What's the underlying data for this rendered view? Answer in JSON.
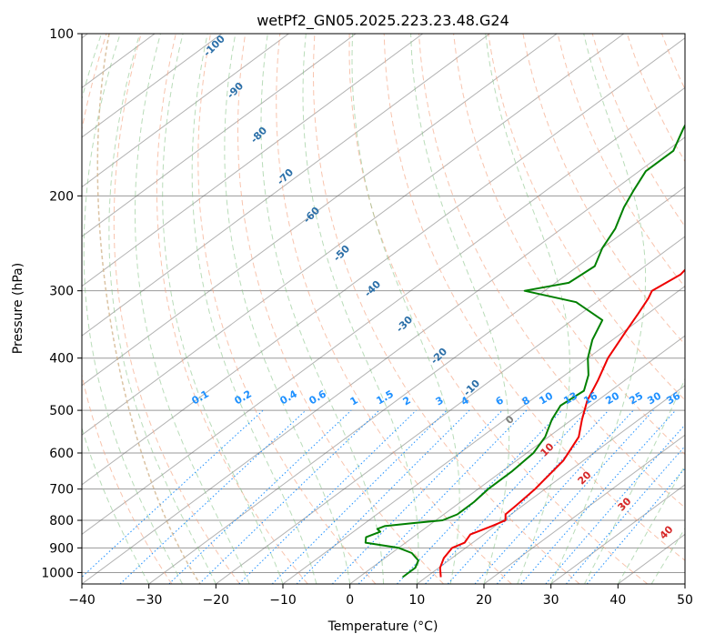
{
  "chart_data": {
    "type": "line",
    "subtype": "skew-t log-p sounding diagram",
    "title": "wetPf2_GN05.2025.223.23.48.G24",
    "xlabel": "Temperature (°C)",
    "ylabel": "Pressure (hPa)",
    "xlim": [
      -40,
      50
    ],
    "ylim": [
      1050,
      100
    ],
    "y_scale": "log",
    "x_ticks": [
      "−40",
      "−30",
      "−20",
      "−10",
      "0",
      "10",
      "20",
      "30",
      "40",
      "50"
    ],
    "y_ticks": [
      "100",
      "200",
      "300",
      "400",
      "500",
      "600",
      "700",
      "800",
      "900",
      "1000"
    ],
    "grid": true,
    "colors": {
      "temperature": "#ee0000",
      "dewpoint": "#008000",
      "dry_adiabat": "#f4a582",
      "moist_adiabat": "#7fbf7f",
      "mixing_ratio": "#1e90ff",
      "isotherm": "#555555",
      "isobar": "#999999",
      "dry_adiabat_label": "#2b6fa8",
      "mixing_ratio_label": "#1e90ff",
      "moist_adiabat_label_warm": "#d62728",
      "moist_adiabat_label_zero": "#7f7f7f"
    },
    "series": [
      {
        "key": "temperature",
        "x": [
          12.2,
          10.2,
          8.8,
          8.0,
          8.8,
          8.0,
          9.5,
          10.4,
          9.2,
          9.0,
          8.5,
          7.0,
          4.5,
          1.5,
          -1.5,
          -4.0,
          -7.0,
          -9.5,
          -11.5,
          -13.0,
          -14.0,
          -13.0,
          -14.0,
          -14.5,
          -17.0,
          -20.5,
          -27.0,
          -34.0,
          -40.0,
          -46.0,
          -52.0,
          -57.0
        ],
        "y": [
          1020,
          980,
          940,
          900,
          880,
          850,
          820,
          800,
          780,
          750,
          700,
          620,
          560,
          520,
          480,
          440,
          400,
          360,
          330,
          310,
          300,
          280,
          260,
          240,
          215,
          200,
          180,
          160,
          145,
          130,
          115,
          100
        ]
      },
      {
        "key": "dewpoint",
        "x": [
          6.5,
          6.5,
          5.5,
          3.0,
          0.0,
          -6.0,
          -7.0,
          -6.0,
          -7.0,
          -6.5,
          -3.0,
          1.0,
          2.0,
          2.0,
          1.5,
          1.5,
          1.0,
          -0.5,
          -3.0,
          -4.5,
          -4.0,
          -6.5,
          -10.0,
          -13.0,
          -15.5,
          -23.0,
          -33.0,
          -28.0,
          -27.5,
          -30.0,
          -32.0,
          -35.0,
          -37.0,
          -39.0,
          -39.0,
          -42.0,
          -45.0,
          -49.0,
          -55.0
        ],
        "y": [
          1020,
          980,
          950,
          920,
          900,
          880,
          860,
          840,
          830,
          820,
          810,
          800,
          780,
          740,
          700,
          650,
          600,
          560,
          520,
          490,
          460,
          430,
          400,
          370,
          340,
          315,
          300,
          290,
          270,
          250,
          230,
          210,
          195,
          180,
          165,
          150,
          135,
          120,
          100
        ]
      }
    ],
    "dry_adiabat_labels": [
      "-100",
      "-90",
      "-80",
      "-70",
      "-60",
      "-50",
      "-40",
      "-30",
      "-20",
      "-10"
    ],
    "mixing_ratio_labels": [
      "0.1",
      "0.2",
      "0.4",
      "0.6",
      "1",
      "1.5",
      "2",
      "3",
      "4",
      "6",
      "8",
      "10",
      "13",
      "16",
      "20",
      "25",
      "30",
      "36"
    ],
    "moist_adiabat_labels": [
      "0",
      "10",
      "20",
      "30",
      "40"
    ]
  }
}
